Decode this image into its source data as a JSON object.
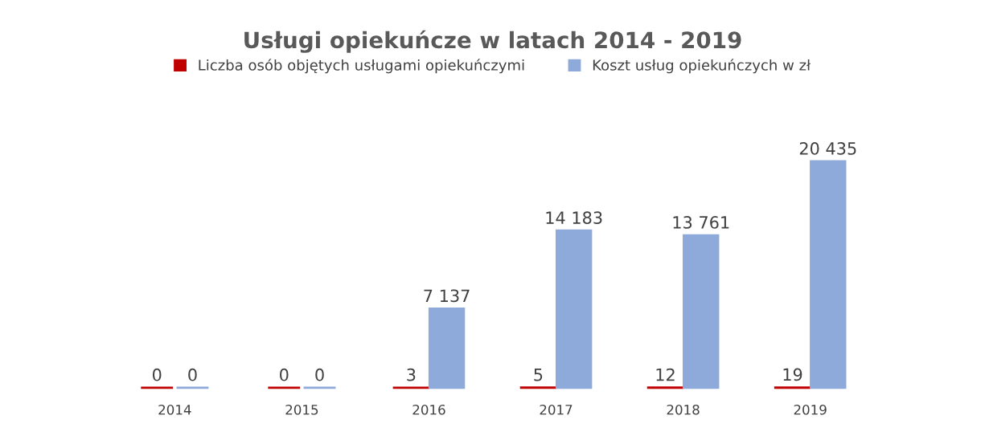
{
  "chart_data": {
    "type": "bar",
    "title": "Usługi opiekuńcze w latach 2014 - 2019",
    "categories": [
      "2014",
      "2015",
      "2016",
      "2017",
      "2018",
      "2019"
    ],
    "series": [
      {
        "name": "Liczba osób objętych usługami opiekuńczymi",
        "color": "#c00000",
        "values": [
          0,
          0,
          3,
          5,
          12,
          19
        ],
        "value_labels": [
          "0",
          "0",
          "3",
          "5",
          "12",
          "19"
        ]
      },
      {
        "name": "Koszt usług opiekuńczych w zł",
        "color": "#8eaadb",
        "values": [
          0,
          0,
          7137,
          14183,
          13761,
          20435
        ],
        "value_labels": [
          "0",
          "0",
          "7 137",
          "14 183",
          "13 761",
          "20 435"
        ]
      }
    ],
    "legend": "top",
    "grid": false
  }
}
